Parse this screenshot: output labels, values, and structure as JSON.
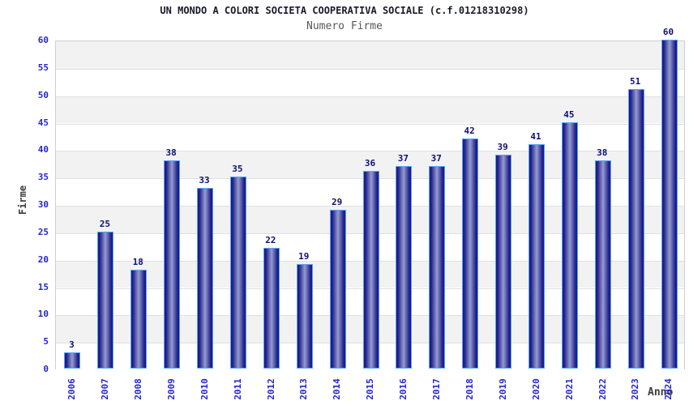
{
  "chart_data": {
    "type": "bar",
    "title": "UN MONDO A COLORI SOCIETA COOPERATIVA SOCIALE (c.f.01218310298)",
    "subtitle": "Numero Firme",
    "xlabel": "Anno",
    "ylabel": "Firme",
    "categories": [
      "2006",
      "2007",
      "2008",
      "2009",
      "2010",
      "2011",
      "2012",
      "2013",
      "2014",
      "2015",
      "2016",
      "2017",
      "2018",
      "2019",
      "2020",
      "2021",
      "2022",
      "2023",
      "2024"
    ],
    "values": [
      3,
      25,
      18,
      38,
      33,
      35,
      22,
      19,
      29,
      36,
      37,
      37,
      42,
      39,
      41,
      45,
      38,
      51,
      60
    ],
    "ylim": [
      0,
      60
    ],
    "ytick_step": 5,
    "grid": true,
    "bands_alternating": true,
    "legend_position": "none"
  },
  "colors": {
    "bar_border": "#55a4f7",
    "bar_edge_dark": "#181884",
    "bar_center_light": "#959cce",
    "axis_tick_label": "#2525cd",
    "value_label": "#0f0f70",
    "title_text": "#1a1a2b",
    "subtitle_text": "#585858",
    "axis_title_text": "#3c3c3c",
    "band_gray": "#f2f2f2",
    "band_white": "#ffffff",
    "gridline": "#e0e0e0",
    "plot_border": "#cfcfcf"
  }
}
